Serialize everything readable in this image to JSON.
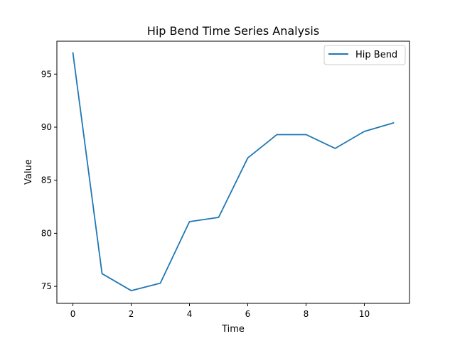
{
  "chart_data": {
    "type": "line",
    "title": "Hip Bend Time Series Analysis",
    "xlabel": "Time",
    "ylabel": "Value",
    "xlim": [
      -0.55,
      11.55
    ],
    "ylim": [
      73.4,
      98.1
    ],
    "xticks": [
      0,
      2,
      4,
      6,
      8,
      10
    ],
    "yticks": [
      75,
      80,
      85,
      90,
      95
    ],
    "grid": false,
    "legend_position": "top-right",
    "series": [
      {
        "name": "Hip Bend",
        "color": "#1f77b4",
        "x": [
          0,
          1,
          2,
          3,
          4,
          5,
          6,
          7,
          8,
          9,
          10,
          11
        ],
        "y": [
          97.0,
          76.2,
          74.6,
          75.3,
          81.1,
          81.5,
          87.1,
          89.3,
          89.3,
          88.0,
          89.6,
          90.4
        ]
      }
    ]
  }
}
